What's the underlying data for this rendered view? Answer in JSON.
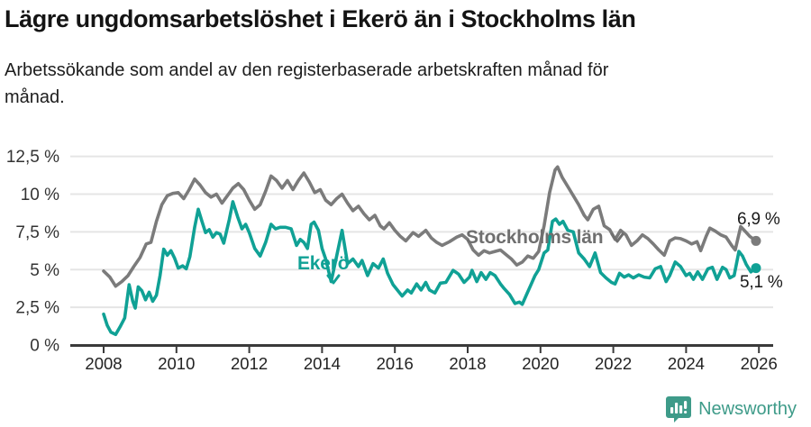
{
  "header": {
    "title": "Lägre ungdomsarbetslöshet i Ekerö än i Stockholms län",
    "subtitle": "Arbetssökande som andel av den registerbaserade arbetskraften månad för månad."
  },
  "annotations": {
    "ekero_label": "Ekerö",
    "stockholm_label": "Stockholms län",
    "gray_end_value": "6,9 %",
    "teal_end_value": "5,1 %"
  },
  "footer": {
    "brand": "Newsworthy"
  },
  "colors": {
    "line_gray": "#7b7b7b",
    "line_teal": "#10a195",
    "axis": "#3a3a3a",
    "grid": "#e5e5e5",
    "tick_text": "#333333",
    "brand_teal": "#3e9b89"
  },
  "chart_data": {
    "type": "line",
    "title": "Lägre ungdomsarbetslöshet i Ekerö än i Stockholms län",
    "xlabel": "",
    "ylabel": "Arbetssökande som andel av den registerbaserade arbetskraften",
    "ylim": [
      0,
      12.5
    ],
    "grid": true,
    "legend_position": "inline-labels",
    "y_axis": {
      "ticks": [
        {
          "value": 0,
          "label": "0 %"
        },
        {
          "value": 2.5,
          "label": "2,5 %"
        },
        {
          "value": 5,
          "label": "5 %"
        },
        {
          "value": 7.5,
          "label": "7,5 %"
        },
        {
          "value": 10,
          "label": "10 %"
        },
        {
          "value": 12.5,
          "label": "12,5 %"
        }
      ]
    },
    "x_axis": {
      "ticks": [
        2008,
        2010,
        2012,
        2014,
        2016,
        2018,
        2020,
        2022,
        2024,
        2026
      ]
    },
    "series": [
      {
        "name": "Stockholms län",
        "color": "#7b7b7b",
        "end_label": "6,9 %",
        "end_value": 6.9,
        "points": [
          [
            2008.0,
            4.9
          ],
          [
            2008.17,
            4.5
          ],
          [
            2008.33,
            3.9
          ],
          [
            2008.5,
            4.2
          ],
          [
            2008.67,
            4.6
          ],
          [
            2008.83,
            5.2
          ],
          [
            2009.0,
            5.8
          ],
          [
            2009.17,
            6.7
          ],
          [
            2009.3,
            6.8
          ],
          [
            2009.45,
            8.2
          ],
          [
            2009.6,
            9.3
          ],
          [
            2009.75,
            9.9
          ],
          [
            2009.9,
            10.05
          ],
          [
            2010.05,
            10.1
          ],
          [
            2010.2,
            9.7
          ],
          [
            2010.35,
            10.3
          ],
          [
            2010.5,
            11.0
          ],
          [
            2010.65,
            10.6
          ],
          [
            2010.8,
            10.1
          ],
          [
            2010.95,
            9.8
          ],
          [
            2011.1,
            10.0
          ],
          [
            2011.25,
            9.4
          ],
          [
            2011.4,
            9.9
          ],
          [
            2011.55,
            10.4
          ],
          [
            2011.7,
            10.7
          ],
          [
            2011.85,
            10.3
          ],
          [
            2012.0,
            9.6
          ],
          [
            2012.15,
            9.0
          ],
          [
            2012.3,
            9.3
          ],
          [
            2012.45,
            10.2
          ],
          [
            2012.6,
            11.2
          ],
          [
            2012.75,
            10.9
          ],
          [
            2012.9,
            10.4
          ],
          [
            2013.05,
            10.9
          ],
          [
            2013.2,
            10.3
          ],
          [
            2013.35,
            10.9
          ],
          [
            2013.5,
            11.4
          ],
          [
            2013.65,
            10.8
          ],
          [
            2013.8,
            10.1
          ],
          [
            2013.95,
            10.3
          ],
          [
            2014.1,
            9.6
          ],
          [
            2014.25,
            9.3
          ],
          [
            2014.4,
            9.7
          ],
          [
            2014.55,
            10.0
          ],
          [
            2014.7,
            9.4
          ],
          [
            2014.85,
            8.9
          ],
          [
            2015.0,
            9.2
          ],
          [
            2015.15,
            8.7
          ],
          [
            2015.3,
            8.3
          ],
          [
            2015.45,
            8.6
          ],
          [
            2015.6,
            7.9
          ],
          [
            2015.7,
            7.7
          ],
          [
            2015.85,
            8.1
          ],
          [
            2016.0,
            7.6
          ],
          [
            2016.15,
            7.2
          ],
          [
            2016.3,
            6.9
          ],
          [
            2016.5,
            7.45
          ],
          [
            2016.65,
            7.2
          ],
          [
            2016.85,
            7.6
          ],
          [
            2017.0,
            7.1
          ],
          [
            2017.15,
            6.8
          ],
          [
            2017.3,
            6.6
          ],
          [
            2017.5,
            6.85
          ],
          [
            2017.7,
            7.15
          ],
          [
            2017.85,
            7.3
          ],
          [
            2018.0,
            7.0
          ],
          [
            2018.15,
            6.3
          ],
          [
            2018.3,
            5.95
          ],
          [
            2018.45,
            6.25
          ],
          [
            2018.6,
            6.1
          ],
          [
            2018.75,
            6.2
          ],
          [
            2018.9,
            6.3
          ],
          [
            2019.05,
            6.0
          ],
          [
            2019.2,
            5.7
          ],
          [
            2019.35,
            5.3
          ],
          [
            2019.5,
            5.5
          ],
          [
            2019.65,
            5.9
          ],
          [
            2019.8,
            5.75
          ],
          [
            2019.95,
            6.2
          ],
          [
            2020.1,
            7.9
          ],
          [
            2020.25,
            10.1
          ],
          [
            2020.4,
            11.6
          ],
          [
            2020.47,
            11.8
          ],
          [
            2020.6,
            11.1
          ],
          [
            2020.75,
            10.5
          ],
          [
            2020.9,
            9.9
          ],
          [
            2021.05,
            9.3
          ],
          [
            2021.2,
            8.6
          ],
          [
            2021.3,
            8.3
          ],
          [
            2021.45,
            9.0
          ],
          [
            2021.6,
            9.2
          ],
          [
            2021.75,
            7.9
          ],
          [
            2021.9,
            7.65
          ],
          [
            2022.05,
            7.0
          ],
          [
            2022.2,
            7.6
          ],
          [
            2022.35,
            7.3
          ],
          [
            2022.5,
            6.6
          ],
          [
            2022.65,
            6.9
          ],
          [
            2022.8,
            7.3
          ],
          [
            2022.95,
            7.05
          ],
          [
            2023.1,
            6.7
          ],
          [
            2023.25,
            6.3
          ],
          [
            2023.4,
            5.95
          ],
          [
            2023.55,
            6.9
          ],
          [
            2023.7,
            7.1
          ],
          [
            2023.85,
            7.05
          ],
          [
            2024.0,
            6.9
          ],
          [
            2024.15,
            6.7
          ],
          [
            2024.3,
            6.85
          ],
          [
            2024.4,
            6.25
          ],
          [
            2024.55,
            7.2
          ],
          [
            2024.65,
            7.75
          ],
          [
            2024.8,
            7.55
          ],
          [
            2024.95,
            7.3
          ],
          [
            2025.1,
            7.15
          ],
          [
            2025.25,
            6.6
          ],
          [
            2025.35,
            6.3
          ],
          [
            2025.5,
            7.85
          ],
          [
            2025.6,
            7.6
          ],
          [
            2025.75,
            7.2
          ],
          [
            2025.92,
            6.9
          ]
        ]
      },
      {
        "name": "Ekerö",
        "color": "#10a195",
        "end_label": "5,1 %",
        "end_value": 5.1,
        "points": [
          [
            2008.0,
            2.05
          ],
          [
            2008.1,
            1.3
          ],
          [
            2008.2,
            0.85
          ],
          [
            2008.33,
            0.7
          ],
          [
            2008.45,
            1.2
          ],
          [
            2008.58,
            1.8
          ],
          [
            2008.7,
            4.0
          ],
          [
            2008.8,
            2.9
          ],
          [
            2008.87,
            2.45
          ],
          [
            2008.95,
            3.85
          ],
          [
            2009.05,
            3.6
          ],
          [
            2009.15,
            3.0
          ],
          [
            2009.25,
            3.5
          ],
          [
            2009.35,
            2.9
          ],
          [
            2009.45,
            3.3
          ],
          [
            2009.55,
            4.6
          ],
          [
            2009.65,
            6.35
          ],
          [
            2009.75,
            5.95
          ],
          [
            2009.85,
            6.25
          ],
          [
            2009.95,
            5.75
          ],
          [
            2010.05,
            5.1
          ],
          [
            2010.17,
            5.25
          ],
          [
            2010.27,
            5.05
          ],
          [
            2010.37,
            5.85
          ],
          [
            2010.5,
            7.8
          ],
          [
            2010.6,
            9.0
          ],
          [
            2010.7,
            8.2
          ],
          [
            2010.8,
            7.45
          ],
          [
            2010.9,
            7.65
          ],
          [
            2011.0,
            7.15
          ],
          [
            2011.1,
            7.45
          ],
          [
            2011.2,
            7.35
          ],
          [
            2011.3,
            6.75
          ],
          [
            2011.45,
            8.3
          ],
          [
            2011.55,
            9.5
          ],
          [
            2011.68,
            8.5
          ],
          [
            2011.8,
            7.7
          ],
          [
            2011.9,
            8.0
          ],
          [
            2012.0,
            7.45
          ],
          [
            2012.15,
            6.4
          ],
          [
            2012.3,
            5.9
          ],
          [
            2012.45,
            6.8
          ],
          [
            2012.6,
            8.0
          ],
          [
            2012.72,
            7.7
          ],
          [
            2012.85,
            7.8
          ],
          [
            2013.0,
            7.8
          ],
          [
            2013.15,
            7.7
          ],
          [
            2013.3,
            6.6
          ],
          [
            2013.4,
            7.0
          ],
          [
            2013.5,
            6.8
          ],
          [
            2013.6,
            6.4
          ],
          [
            2013.7,
            8.0
          ],
          [
            2013.78,
            8.15
          ],
          [
            2013.9,
            7.6
          ],
          [
            2014.0,
            6.4
          ],
          [
            2014.1,
            5.7
          ],
          [
            2014.25,
            4.2
          ],
          [
            2014.4,
            5.9
          ],
          [
            2014.55,
            7.6
          ],
          [
            2014.7,
            5.4
          ],
          [
            2014.85,
            5.7
          ],
          [
            2015.0,
            5.2
          ],
          [
            2015.1,
            5.6
          ],
          [
            2015.25,
            4.6
          ],
          [
            2015.4,
            5.4
          ],
          [
            2015.55,
            5.1
          ],
          [
            2015.68,
            5.7
          ],
          [
            2015.8,
            4.75
          ],
          [
            2015.95,
            4.0
          ],
          [
            2016.1,
            3.55
          ],
          [
            2016.2,
            3.25
          ],
          [
            2016.35,
            3.65
          ],
          [
            2016.45,
            3.45
          ],
          [
            2016.6,
            4.05
          ],
          [
            2016.72,
            3.65
          ],
          [
            2016.85,
            4.15
          ],
          [
            2016.95,
            3.65
          ],
          [
            2017.1,
            3.45
          ],
          [
            2017.25,
            4.1
          ],
          [
            2017.4,
            4.15
          ],
          [
            2017.6,
            4.95
          ],
          [
            2017.75,
            4.7
          ],
          [
            2017.9,
            4.15
          ],
          [
            2018.05,
            4.5
          ],
          [
            2018.12,
            4.95
          ],
          [
            2018.25,
            4.2
          ],
          [
            2018.37,
            4.8
          ],
          [
            2018.5,
            4.35
          ],
          [
            2018.62,
            4.8
          ],
          [
            2018.75,
            4.6
          ],
          [
            2018.9,
            4.05
          ],
          [
            2019.0,
            3.75
          ],
          [
            2019.15,
            3.35
          ],
          [
            2019.3,
            2.75
          ],
          [
            2019.42,
            2.85
          ],
          [
            2019.5,
            2.7
          ],
          [
            2019.62,
            3.35
          ],
          [
            2019.72,
            3.9
          ],
          [
            2019.85,
            4.6
          ],
          [
            2019.95,
            5.0
          ],
          [
            2020.1,
            6.1
          ],
          [
            2020.2,
            6.3
          ],
          [
            2020.33,
            8.2
          ],
          [
            2020.42,
            8.35
          ],
          [
            2020.52,
            8.0
          ],
          [
            2020.62,
            8.2
          ],
          [
            2020.75,
            7.6
          ],
          [
            2020.9,
            7.5
          ],
          [
            2021.05,
            6.1
          ],
          [
            2021.2,
            5.7
          ],
          [
            2021.35,
            5.2
          ],
          [
            2021.5,
            6.1
          ],
          [
            2021.65,
            4.8
          ],
          [
            2021.8,
            4.45
          ],
          [
            2021.95,
            4.15
          ],
          [
            2022.05,
            4.05
          ],
          [
            2022.17,
            4.75
          ],
          [
            2022.3,
            4.5
          ],
          [
            2022.42,
            4.65
          ],
          [
            2022.55,
            4.45
          ],
          [
            2022.7,
            4.65
          ],
          [
            2022.85,
            4.5
          ],
          [
            2023.0,
            4.45
          ],
          [
            2023.15,
            5.05
          ],
          [
            2023.3,
            5.2
          ],
          [
            2023.45,
            4.2
          ],
          [
            2023.55,
            4.6
          ],
          [
            2023.7,
            5.5
          ],
          [
            2023.85,
            5.2
          ],
          [
            2024.0,
            4.6
          ],
          [
            2024.1,
            4.75
          ],
          [
            2024.2,
            4.35
          ],
          [
            2024.32,
            4.85
          ],
          [
            2024.45,
            4.35
          ],
          [
            2024.6,
            5.05
          ],
          [
            2024.72,
            5.15
          ],
          [
            2024.85,
            4.35
          ],
          [
            2025.0,
            5.15
          ],
          [
            2025.1,
            5.0
          ],
          [
            2025.2,
            4.45
          ],
          [
            2025.32,
            4.6
          ],
          [
            2025.45,
            6.2
          ],
          [
            2025.55,
            5.9
          ],
          [
            2025.65,
            5.35
          ],
          [
            2025.78,
            4.85
          ],
          [
            2025.92,
            5.1
          ]
        ]
      }
    ]
  }
}
